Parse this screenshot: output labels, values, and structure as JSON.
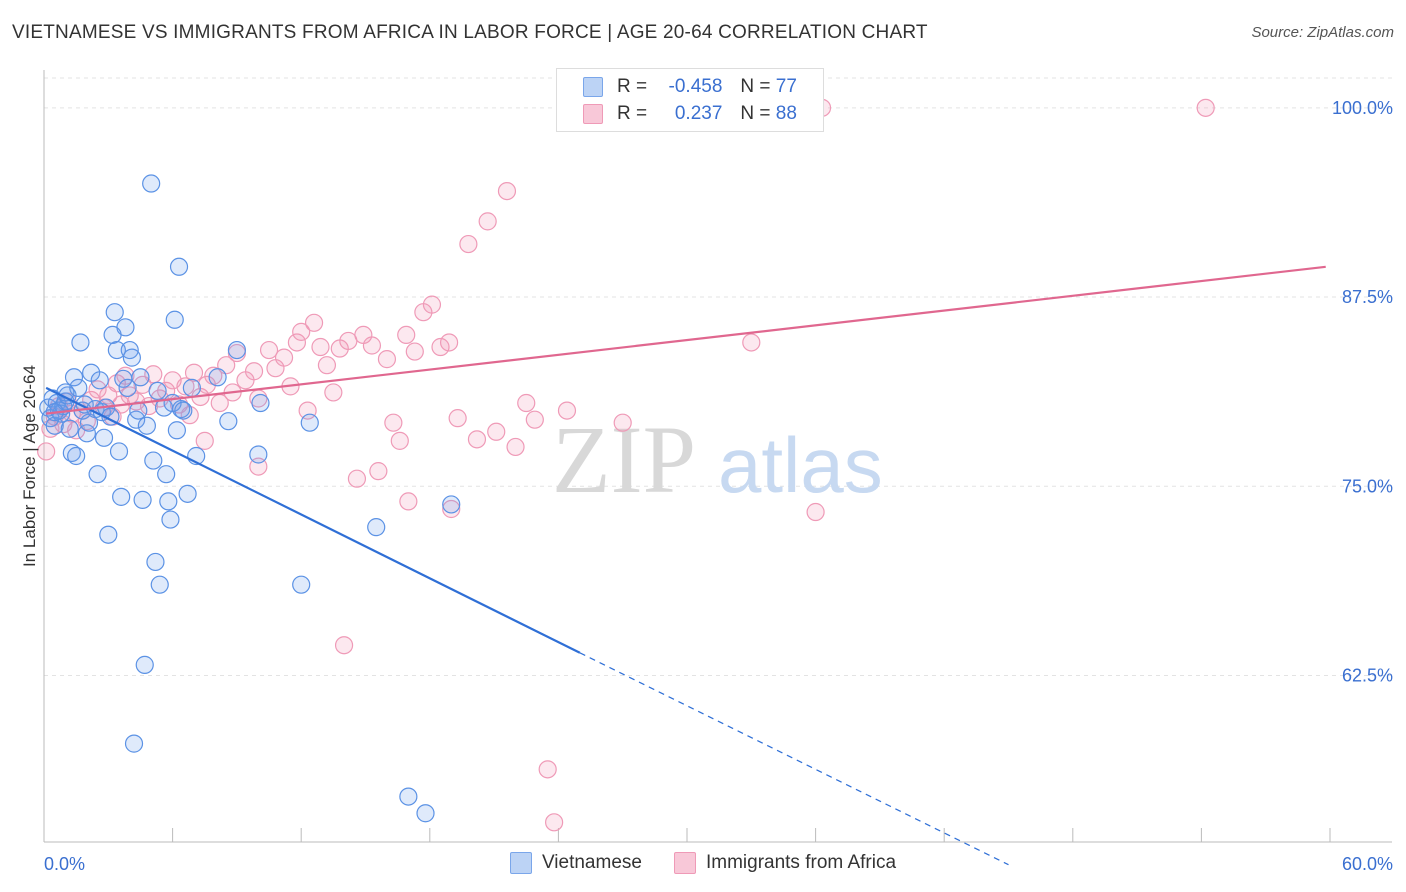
{
  "title": "VIETNAMESE VS IMMIGRANTS FROM AFRICA IN LABOR FORCE | AGE 20-64 CORRELATION CHART",
  "source": "Source: ZipAtlas.com",
  "watermark": {
    "zip": "ZIP",
    "atlas": "atlas"
  },
  "legend": {
    "rows": [
      {
        "r_label": "R =",
        "r_value": "-0.458",
        "n_label": "N =",
        "n_value": "77"
      },
      {
        "r_label": "R =",
        "r_value": "0.237",
        "n_label": "N =",
        "n_value": "88"
      }
    ]
  },
  "chart_data": {
    "type": "scatter",
    "xlabel": "",
    "ylabel": "In Labor Force | Age 20-64",
    "xlim": [
      0,
      60
    ],
    "ylim": [
      51.5,
      102.5
    ],
    "x_tick_labels": [
      "0.0%",
      "60.0%"
    ],
    "y_ticks": [
      62.5,
      75.0,
      87.5,
      100.0
    ],
    "y_tick_labels": [
      "62.5%",
      "75.0%",
      "87.5%",
      "100.0%"
    ],
    "grid": true,
    "colors": {
      "vietnamese": "#4a86e8",
      "africa": "#e87ea1",
      "vietnamese_line": "#2f6fd6",
      "africa_line": "#e0678f"
    },
    "series": [
      {
        "name": "Vietnamese",
        "trend": {
          "x0": 0.1,
          "y0": 81.5,
          "x1": 25.0,
          "y1": 64.0,
          "dash_to_x": 45.0,
          "dash_to_y": 50.0
        },
        "points": [
          [
            0.2,
            80.2
          ],
          [
            0.3,
            79.5
          ],
          [
            0.4,
            80.8
          ],
          [
            0.5,
            79.0
          ],
          [
            0.6,
            80.5
          ],
          [
            0.7,
            80.0
          ],
          [
            0.8,
            79.8
          ],
          [
            0.9,
            80.3
          ],
          [
            1.0,
            80.6
          ],
          [
            1.1,
            81.0
          ],
          [
            1.2,
            78.8
          ],
          [
            1.3,
            77.2
          ],
          [
            1.4,
            82.2
          ],
          [
            1.5,
            77.0
          ],
          [
            1.6,
            81.5
          ],
          [
            1.7,
            84.5
          ],
          [
            1.8,
            80.0
          ],
          [
            1.9,
            80.4
          ],
          [
            2.0,
            78.5
          ],
          [
            2.1,
            79.2
          ],
          [
            2.2,
            82.5
          ],
          [
            2.4,
            80.1
          ],
          [
            2.5,
            75.8
          ],
          [
            2.6,
            82.0
          ],
          [
            2.7,
            79.9
          ],
          [
            2.8,
            78.2
          ],
          [
            2.9,
            80.2
          ],
          [
            3.0,
            71.8
          ],
          [
            3.1,
            79.6
          ],
          [
            3.2,
            85.0
          ],
          [
            3.3,
            86.5
          ],
          [
            3.4,
            84.0
          ],
          [
            3.5,
            77.3
          ],
          [
            3.6,
            74.3
          ],
          [
            3.7,
            82.1
          ],
          [
            3.8,
            85.5
          ],
          [
            3.9,
            81.5
          ],
          [
            4.0,
            84.0
          ],
          [
            4.1,
            83.5
          ],
          [
            4.2,
            58.0
          ],
          [
            4.3,
            79.4
          ],
          [
            4.4,
            80.0
          ],
          [
            4.5,
            82.2
          ],
          [
            4.6,
            74.1
          ],
          [
            4.7,
            63.2
          ],
          [
            4.8,
            79.0
          ],
          [
            5.0,
            95.0
          ],
          [
            5.1,
            76.7
          ],
          [
            5.2,
            70.0
          ],
          [
            5.3,
            81.3
          ],
          [
            5.4,
            68.5
          ],
          [
            5.6,
            80.2
          ],
          [
            5.7,
            75.8
          ],
          [
            5.8,
            74.0
          ],
          [
            5.9,
            72.8
          ],
          [
            6.0,
            80.5
          ],
          [
            6.1,
            86.0
          ],
          [
            6.2,
            78.7
          ],
          [
            6.3,
            89.5
          ],
          [
            6.4,
            80.1
          ],
          [
            6.5,
            80.0
          ],
          [
            6.7,
            74.5
          ],
          [
            6.9,
            81.5
          ],
          [
            7.1,
            77.0
          ],
          [
            8.1,
            82.2
          ],
          [
            8.6,
            79.3
          ],
          [
            9.0,
            84.0
          ],
          [
            10.0,
            77.1
          ],
          [
            10.1,
            80.5
          ],
          [
            12.0,
            68.5
          ],
          [
            12.4,
            79.2
          ],
          [
            15.5,
            72.3
          ],
          [
            17.0,
            54.5
          ],
          [
            17.8,
            53.4
          ],
          [
            19.0,
            73.8
          ],
          [
            0.5,
            79.9
          ],
          [
            1.0,
            81.2
          ]
        ]
      },
      {
        "name": "Immigrants from Africa",
        "trend": {
          "x0": 0.1,
          "y0": 79.8,
          "x1": 59.8,
          "y1": 89.5
        },
        "points": [
          [
            0.1,
            77.3
          ],
          [
            0.3,
            78.8
          ],
          [
            0.5,
            79.6
          ],
          [
            0.7,
            80.3
          ],
          [
            0.9,
            79.1
          ],
          [
            1.1,
            80.6
          ],
          [
            1.3,
            79.8
          ],
          [
            1.5,
            78.7
          ],
          [
            1.8,
            80.0
          ],
          [
            2.0,
            79.3
          ],
          [
            2.2,
            80.7
          ],
          [
            2.5,
            81.4
          ],
          [
            2.8,
            80.2
          ],
          [
            3.0,
            81.0
          ],
          [
            3.2,
            79.6
          ],
          [
            3.4,
            81.8
          ],
          [
            3.6,
            80.4
          ],
          [
            3.8,
            82.3
          ],
          [
            4.0,
            81.0
          ],
          [
            4.3,
            80.6
          ],
          [
            4.6,
            81.7
          ],
          [
            4.9,
            80.3
          ],
          [
            5.1,
            82.4
          ],
          [
            5.4,
            80.8
          ],
          [
            5.7,
            81.3
          ],
          [
            6.0,
            82.0
          ],
          [
            6.3,
            80.4
          ],
          [
            6.6,
            81.6
          ],
          [
            6.8,
            79.7
          ],
          [
            7.0,
            82.5
          ],
          [
            7.3,
            80.9
          ],
          [
            7.6,
            81.7
          ],
          [
            7.9,
            82.3
          ],
          [
            8.2,
            80.5
          ],
          [
            8.5,
            83.0
          ],
          [
            8.8,
            81.2
          ],
          [
            9.0,
            83.8
          ],
          [
            9.4,
            82.0
          ],
          [
            9.8,
            82.6
          ],
          [
            10.0,
            80.8
          ],
          [
            10.5,
            84.0
          ],
          [
            10.8,
            82.8
          ],
          [
            11.2,
            83.5
          ],
          [
            11.5,
            81.6
          ],
          [
            11.8,
            84.5
          ],
          [
            12.0,
            85.2
          ],
          [
            12.3,
            80.0
          ],
          [
            12.6,
            85.8
          ],
          [
            12.9,
            84.2
          ],
          [
            13.2,
            83.0
          ],
          [
            13.5,
            81.2
          ],
          [
            13.8,
            84.1
          ],
          [
            14.2,
            84.6
          ],
          [
            14.6,
            75.5
          ],
          [
            14.9,
            85.0
          ],
          [
            15.3,
            84.3
          ],
          [
            15.6,
            76.0
          ],
          [
            16.0,
            83.4
          ],
          [
            16.3,
            79.2
          ],
          [
            16.6,
            78.0
          ],
          [
            16.9,
            85.0
          ],
          [
            17.3,
            83.9
          ],
          [
            17.7,
            86.5
          ],
          [
            18.1,
            87.0
          ],
          [
            18.5,
            84.2
          ],
          [
            18.9,
            84.5
          ],
          [
            19.3,
            79.5
          ],
          [
            19.8,
            91.0
          ],
          [
            20.2,
            78.1
          ],
          [
            20.7,
            92.5
          ],
          [
            21.1,
            78.6
          ],
          [
            21.6,
            94.5
          ],
          [
            22.0,
            77.6
          ],
          [
            22.5,
            80.5
          ],
          [
            22.9,
            79.4
          ],
          [
            23.5,
            56.3
          ],
          [
            23.8,
            52.8
          ],
          [
            24.4,
            80.0
          ],
          [
            27.0,
            79.2
          ],
          [
            33.0,
            84.5
          ],
          [
            36.0,
            73.3
          ],
          [
            36.3,
            100.0
          ],
          [
            54.2,
            100.0
          ],
          [
            14.0,
            64.5
          ],
          [
            17.0,
            74.0
          ],
          [
            19.0,
            73.5
          ],
          [
            10.0,
            76.3
          ],
          [
            7.5,
            78.0
          ]
        ]
      }
    ]
  }
}
